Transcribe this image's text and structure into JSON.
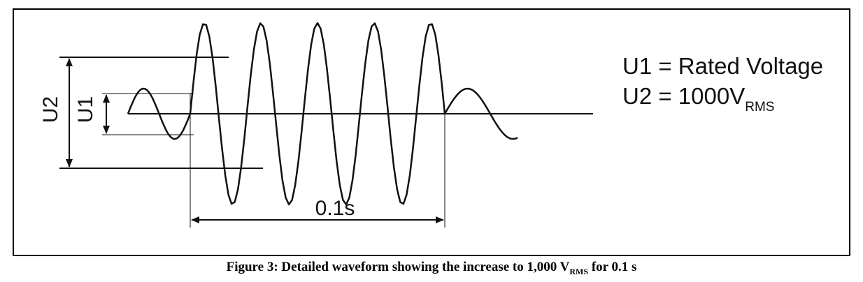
{
  "diagram": {
    "labels": {
      "u2_label": "U2",
      "u1_label": "U1",
      "duration_label": "0.1s"
    },
    "legend": {
      "line1": "U1 = Rated Voltage",
      "line2_prefix": "U2 = 1000V",
      "line2_subscript": "RMS"
    }
  },
  "caption": {
    "text_before": "Figure 3: Detailed waveform showing the increase to 1,000 V",
    "subscript": "RMS",
    "text_after": " for 0.1 s"
  }
}
